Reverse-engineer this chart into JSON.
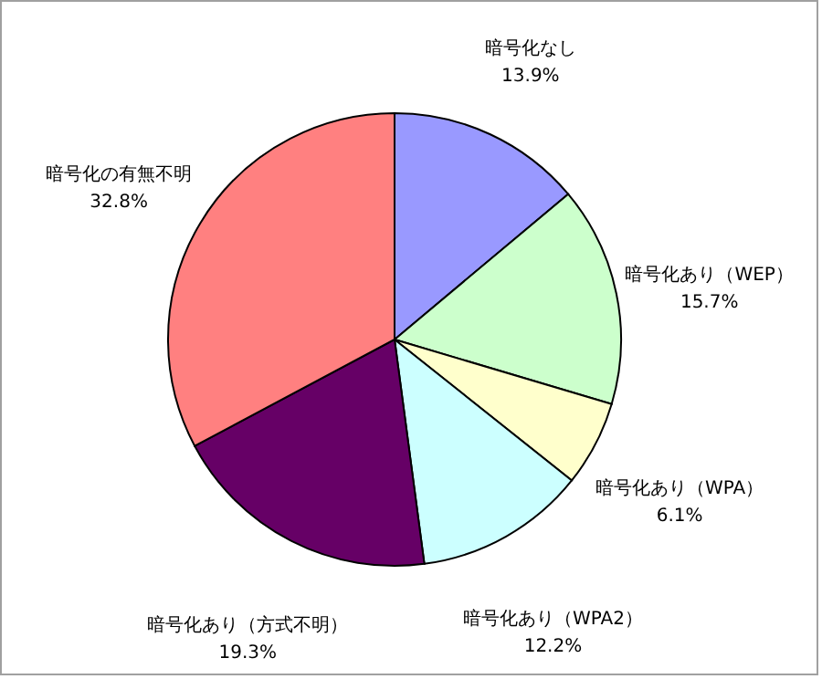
{
  "chart_data": {
    "type": "pie",
    "categories": [
      "暗号化なし",
      "暗号化あり（WEP）",
      "暗号化あり（WPA）",
      "暗号化あり（WPA2）",
      "暗号化あり（方式不明）",
      "暗号化の有無不明"
    ],
    "values": [
      13.9,
      15.7,
      6.1,
      12.2,
      19.3,
      32.8
    ],
    "value_labels": [
      "13.9%",
      "15.7%",
      "6.1%",
      "12.2%",
      "19.3%",
      "32.8%"
    ],
    "colors": [
      "#9999ff",
      "#ccffcc",
      "#ffffcc",
      "#ccffff",
      "#660066",
      "#ff8080"
    ]
  }
}
